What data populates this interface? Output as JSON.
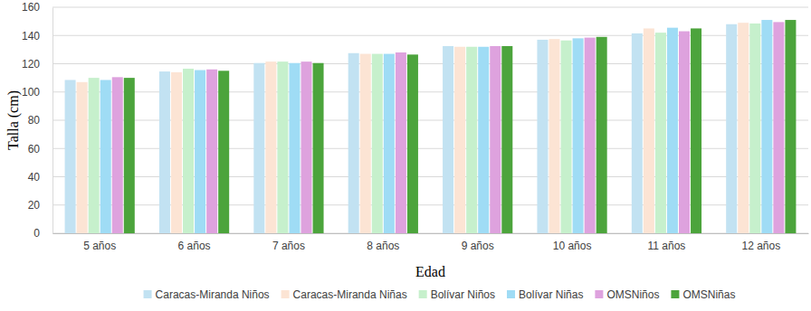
{
  "chart_data": {
    "type": "bar",
    "x_label": "Edad",
    "y_label": "Talla (cm)",
    "categories": [
      "5 años",
      "6 años",
      "7 años",
      "8 años",
      "9 años",
      "10 años",
      "11 años",
      "12 años"
    ],
    "series": [
      {
        "name": "Caracas-Miranda Niños",
        "color": "#c2e2f2",
        "values": [
          108.5,
          114.5,
          120.5,
          127.5,
          132.5,
          137,
          141.5,
          148
        ]
      },
      {
        "name": "Caracas-Miranda Niñas",
        "color": "#fce4d4",
        "values": [
          107,
          114,
          121.5,
          127,
          132,
          137.5,
          145,
          149
        ]
      },
      {
        "name": "Bolívar Niños",
        "color": "#c6f0cc",
        "values": [
          110,
          116.5,
          121.5,
          127,
          132,
          136.5,
          142,
          148.5
        ]
      },
      {
        "name": "Bolívar Niñas",
        "color": "#9fdcf5",
        "values": [
          108.5,
          115.5,
          120.5,
          127,
          132,
          138,
          145.5,
          151
        ]
      },
      {
        "name": "OMSNiños",
        "color": "#dea2de",
        "values": [
          110.5,
          116,
          121.5,
          128,
          132.5,
          138.5,
          143,
          149.5
        ]
      },
      {
        "name": "OMSNiñas",
        "color": "#4ca43c",
        "values": [
          110,
          115,
          120.5,
          126.5,
          132.5,
          139,
          145,
          151
        ]
      }
    ],
    "ylim": [
      0,
      160
    ],
    "yticks": [
      0,
      20,
      40,
      60,
      80,
      100,
      120,
      140,
      160
    ],
    "grid": true,
    "legend": "bottom"
  }
}
